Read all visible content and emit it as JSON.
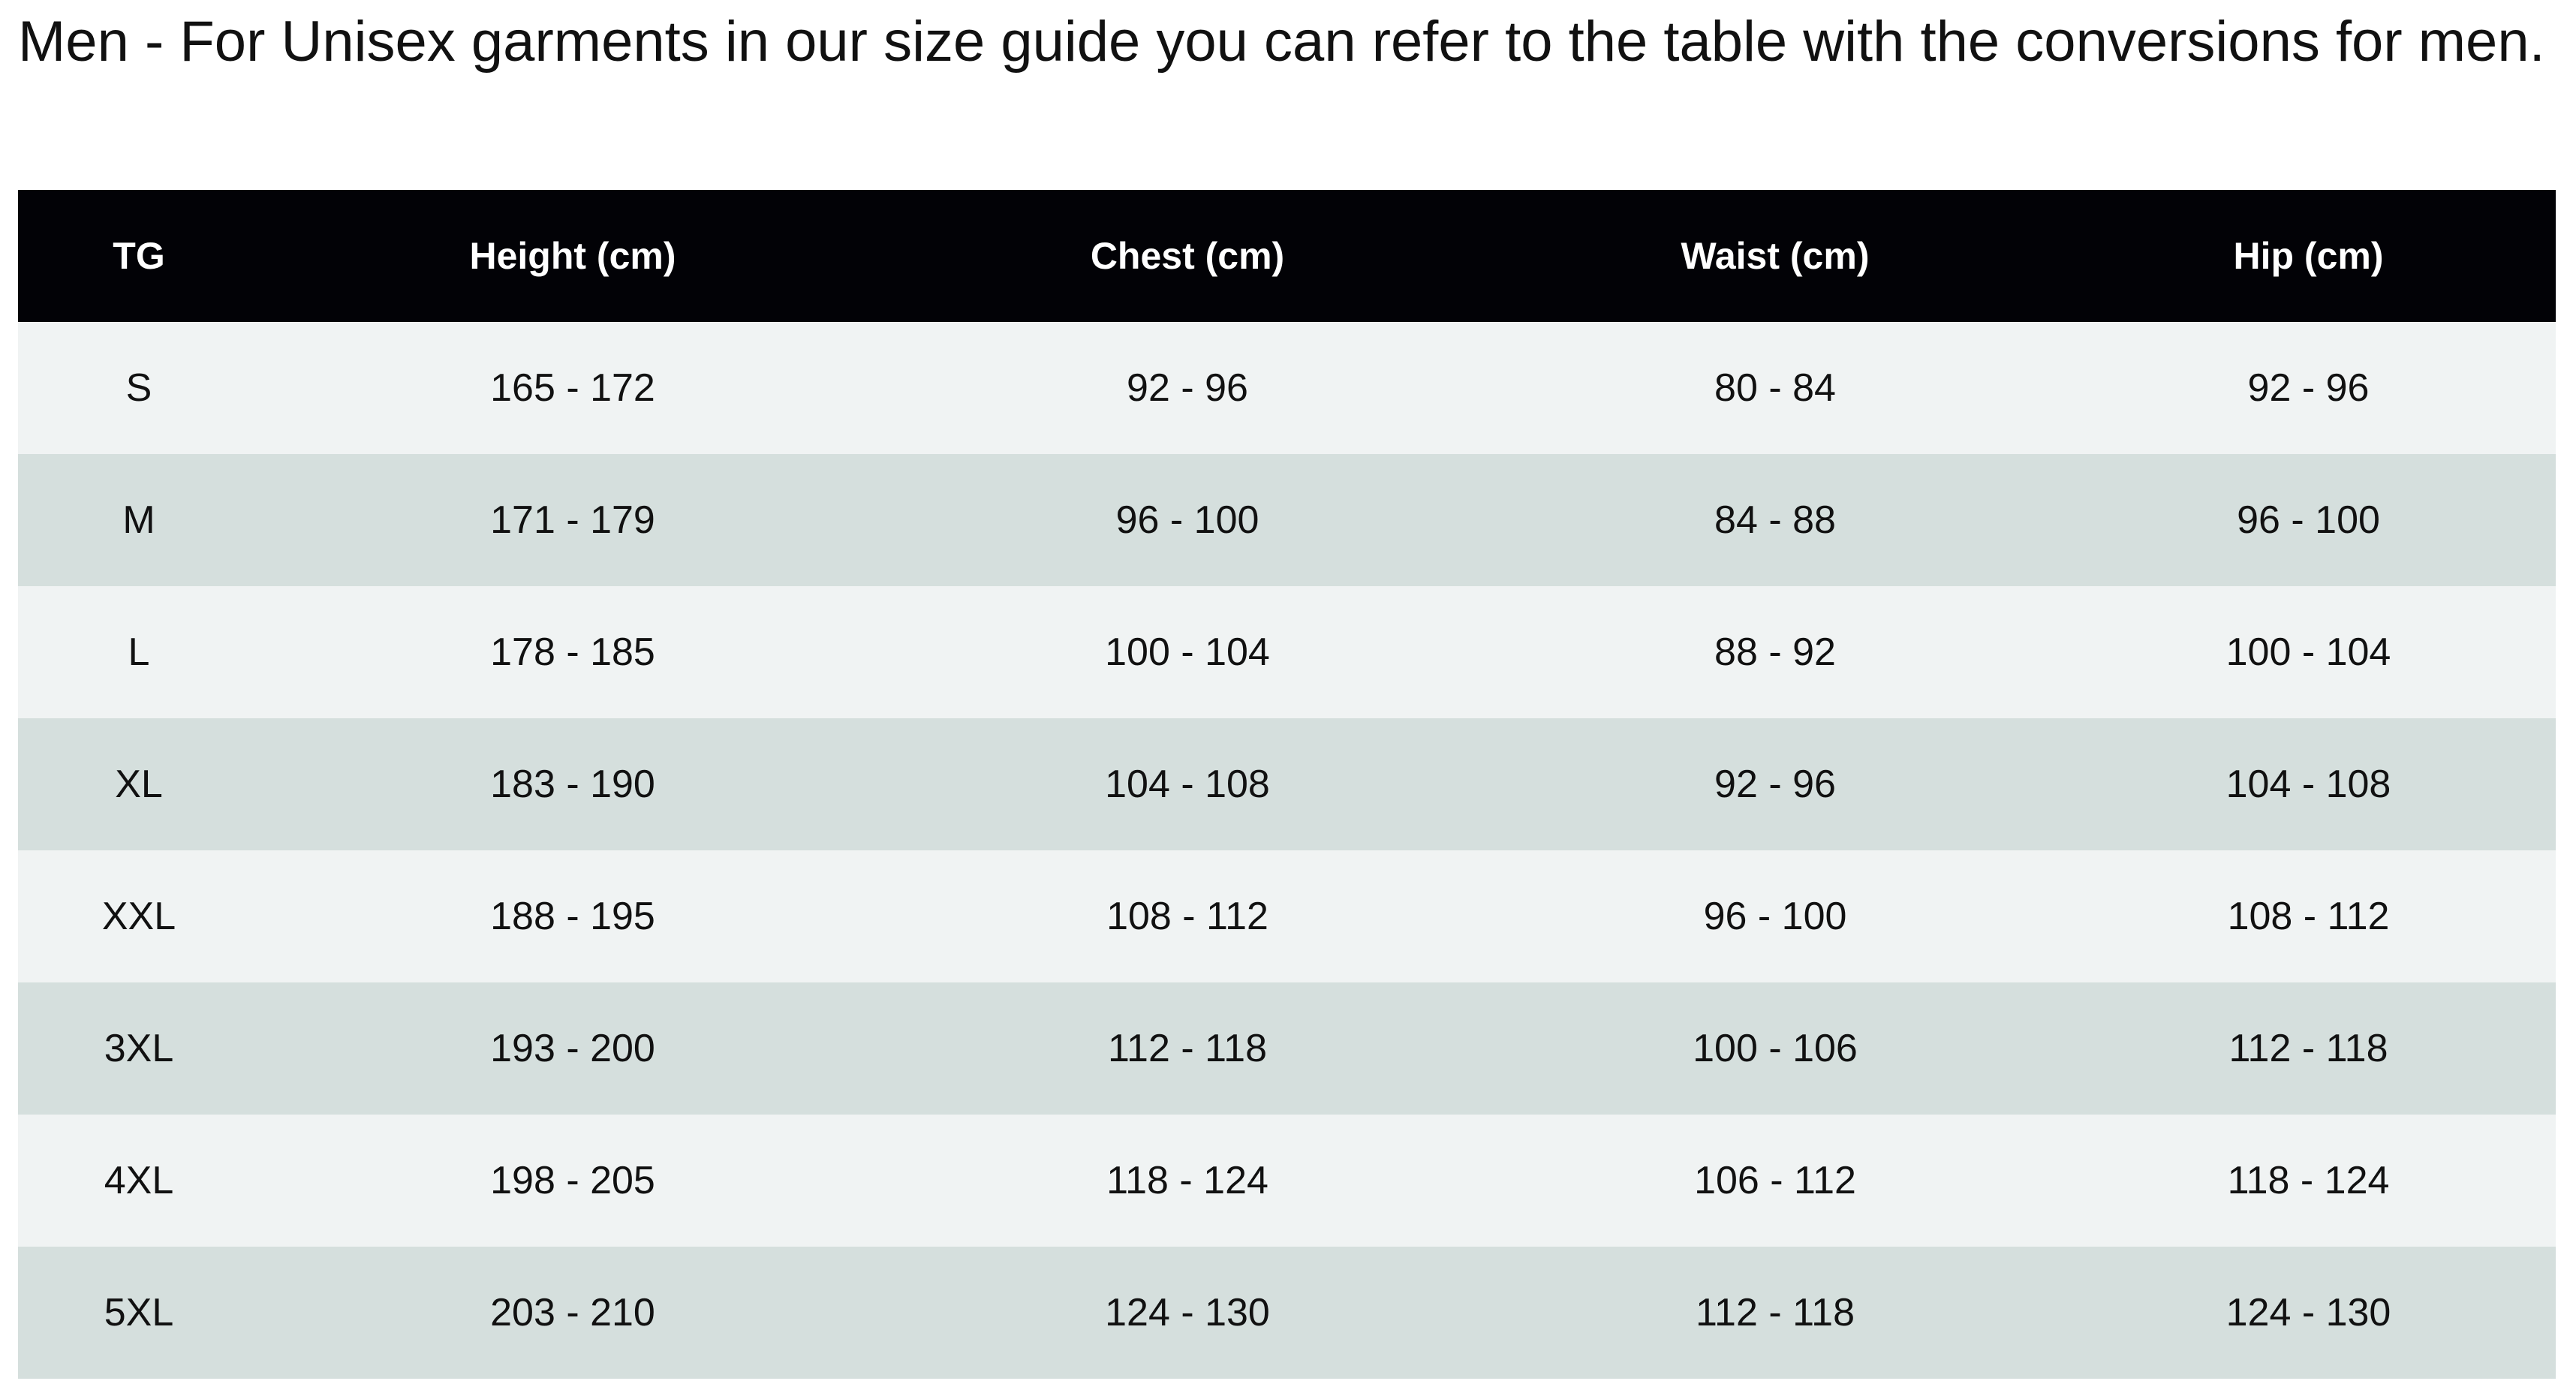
{
  "title": "Men - For Unisex garments in our size guide you can refer to the table with the conversions for men.",
  "table": {
    "headers": [
      "TG",
      "Height (cm)",
      "Chest (cm)",
      "Waist (cm)",
      "Hip (cm)"
    ],
    "rows": [
      [
        "S",
        "165 - 172",
        "92 - 96",
        "80 - 84",
        "92 - 96"
      ],
      [
        "M",
        "171 - 179",
        "96 - 100",
        "84 - 88",
        "96 - 100"
      ],
      [
        "L",
        "178 - 185",
        "100 - 104",
        "88 - 92",
        "100 - 104"
      ],
      [
        "XL",
        "183 - 190",
        "104 - 108",
        "92 - 96",
        "104 - 108"
      ],
      [
        "XXL",
        "188 - 195",
        "108 - 112",
        "96 - 100",
        "108 - 112"
      ],
      [
        "3XL",
        "193 - 200",
        "112 - 118",
        "100 - 106",
        "112 - 118"
      ],
      [
        "4XL",
        "198 - 205",
        "118 - 124",
        "106 - 112",
        "118 - 124"
      ],
      [
        "5XL",
        "203 - 210",
        "124 - 130",
        "112 - 118",
        "124 - 130"
      ]
    ]
  },
  "colors": {
    "header_bg": "#020206",
    "row_light": "#f0f3f3",
    "row_dark": "#d5dfdd"
  }
}
